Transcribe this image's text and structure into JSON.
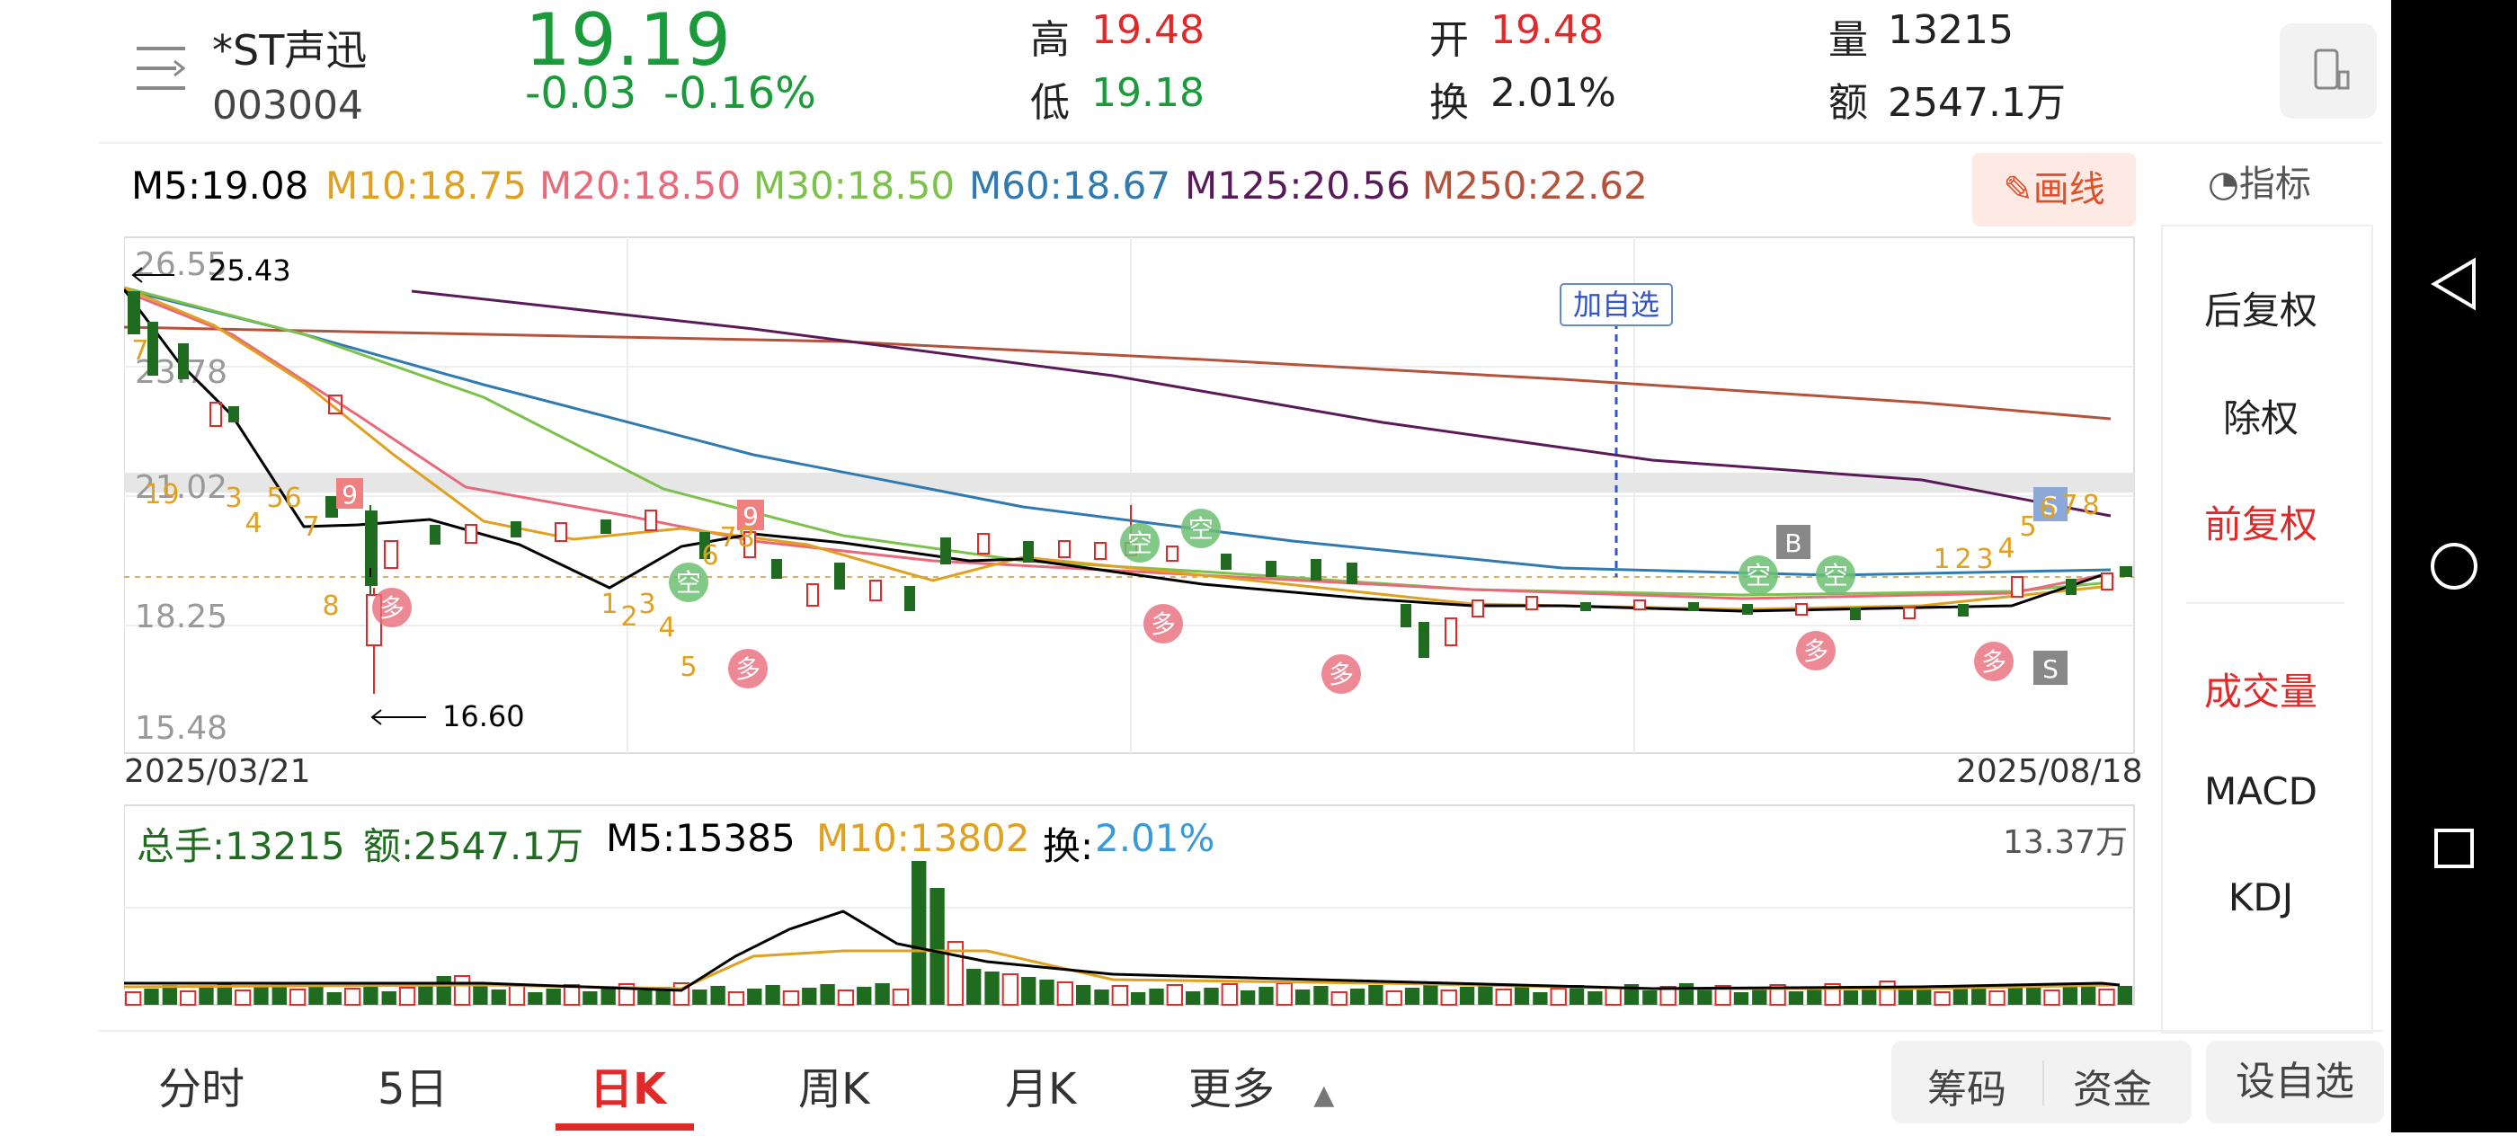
{
  "header": {
    "name": "*ST声迅",
    "code": "003004",
    "price": "19.19",
    "change": "-0.03",
    "change_pct": "-0.16%",
    "high_label": "高",
    "high": "19.48",
    "low_label": "低",
    "low": "19.18",
    "open_label": "开",
    "open": "19.48",
    "turnover_label": "换",
    "turnover": "2.01%",
    "vol_label": "量",
    "vol": "13215",
    "amount_label": "额",
    "amount": "2547.1万"
  },
  "ma_legend": {
    "m5": "M5:19.08",
    "m10": "M10:18.75",
    "m20": "M20:18.50",
    "m30": "M30:18.50",
    "m60": "M60:18.67",
    "m125": "M125:20.56",
    "m250": "M250:22.62"
  },
  "draw_button": "画线",
  "indicator_label": "指标",
  "right_panel": [
    "后复权",
    "除权",
    "前复权",
    "成交量",
    "MACD",
    "KDJ"
  ],
  "chart_data": {
    "type": "candlestick",
    "y_ticks": [
      "26.55",
      "23.78",
      "21.02",
      "18.25",
      "15.48"
    ],
    "x_start": "2025/03/21",
    "x_end": "2025/08/18",
    "max_label": "25.43",
    "min_label": "16.60",
    "add_watch_label": "加自选",
    "colors": {
      "up": "#e02a2a",
      "down": "#1f6b1f",
      "m5": "#000000",
      "m10": "#e0a020",
      "m20": "#e86a7a",
      "m30": "#7cc24a",
      "m60": "#2f7ab0",
      "m125": "#5a1a5a",
      "m250": "#b5523b"
    }
  },
  "volume": {
    "total": "总手:13215",
    "amount": "额:2547.1万",
    "m5": "M5:15385",
    "m10": "M10:13802",
    "turnover_label": "换:",
    "turnover": "2.01%",
    "max": "13.37万"
  },
  "tabs": [
    "分时",
    "5日",
    "日K",
    "周K",
    "月K",
    "更多"
  ],
  "bottom_buttons": {
    "chips": "筹码",
    "funds": "资金",
    "add_watch": "设自选"
  }
}
